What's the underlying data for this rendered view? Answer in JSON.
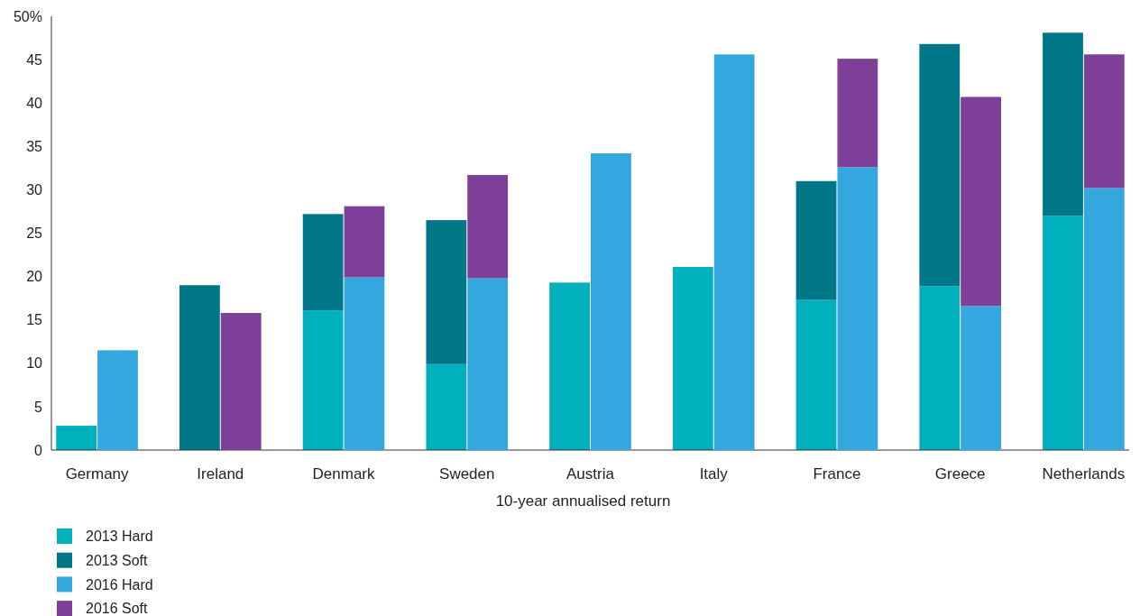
{
  "chart_data": [
    {
      "type": "bar",
      "stacked": true,
      "xlabel": "10-year annualised return",
      "categories": [
        "Germany",
        "Ireland",
        "Denmark",
        "Sweden",
        "Austria",
        "Italy",
        "France",
        "Greece",
        "Netherlands"
      ],
      "series": [
        {
          "name": "2013 Hard",
          "color": "#00b0bd",
          "values": [
            2.8,
            0,
            16.1,
            9.9,
            19.3,
            21.1,
            17.3,
            18.9,
            27.0
          ]
        },
        {
          "name": "2013 Soft",
          "color": "#007786",
          "values": [
            0,
            19.0,
            11.1,
            16.6,
            0,
            0,
            13.7,
            27.9,
            21.1
          ]
        }
      ],
      "ylim": [
        0,
        50
      ],
      "yticks": [
        0,
        5,
        10,
        15,
        20,
        25,
        30,
        35,
        40,
        45,
        {
          "value": 50,
          "label": "50%"
        }
      ],
      "grid": false,
      "legend": "bottom left"
    },
    {
      "type": "bar",
      "stacked": true,
      "tick_labels": false,
      "categories": [
        null,
        null,
        null,
        null,
        null,
        null,
        null,
        null,
        null
      ],
      "series": [
        {
          "name": "2016 Hard",
          "color": "#34a8de",
          "values": [
            11.5,
            0,
            19.9,
            19.8,
            34.2,
            45.6,
            32.6,
            16.6,
            30.2
          ]
        },
        {
          "name": "2016 Soft",
          "color": "#7d3f98",
          "values": [
            0,
            15.8,
            8.2,
            11.9,
            0,
            0,
            12.5,
            24.1,
            15.4
          ]
        }
      ],
      "ylim": [
        0,
        50
      ],
      "grid": false,
      "legend": "bottom left"
    }
  ]
}
